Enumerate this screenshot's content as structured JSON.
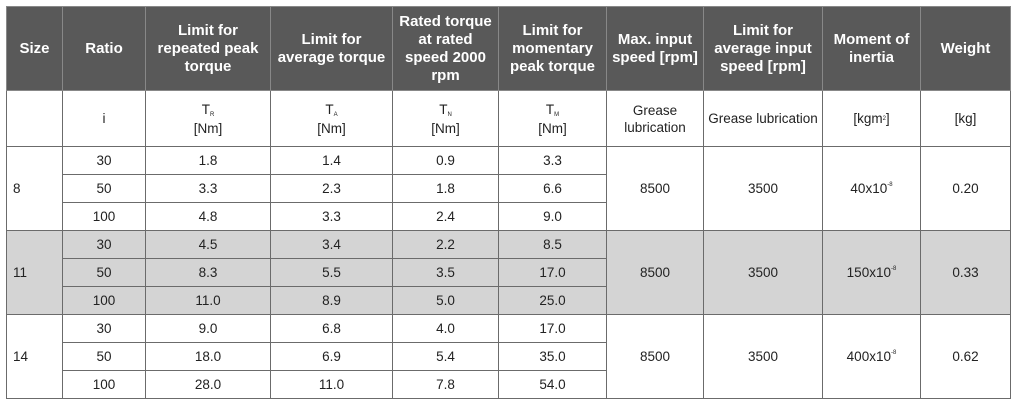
{
  "headers": [
    "Size",
    "Ratio",
    "Limit for repeated peak torque",
    "Limit for average torque",
    "Rated torque at rated speed 2000 rpm",
    "Limit for momentary peak torque",
    "Max. input speed [rpm]",
    "Limit for average input speed [rpm]",
    "Moment of inertia",
    "Weight"
  ],
  "units": {
    "ratio": "i",
    "repeated_peak": {
      "sym": "T",
      "sub": "R",
      "unit": "[Nm]"
    },
    "average": {
      "sym": "T",
      "sub": "A",
      "unit": "[Nm]"
    },
    "rated": {
      "sym": "T",
      "sub": "N",
      "unit": "[Nm]"
    },
    "momentary": {
      "sym": "T",
      "sub": "M",
      "unit": "[Nm]"
    },
    "max_speed": "Grease lubrication",
    "avg_speed": "Grease lubrication",
    "inertia": {
      "unit": "[kgm",
      "sup": "2",
      "close": "]"
    },
    "weight": "[kg]"
  },
  "groups": [
    {
      "size": "8",
      "max_speed": "8500",
      "avg_speed": "3500",
      "inertia": {
        "base": "40x10",
        "exp": "-8"
      },
      "weight": "0.20",
      "rows": [
        {
          "ratio": "30",
          "tr": "1.8",
          "ta": "1.4",
          "tn": "0.9",
          "tm": "3.3"
        },
        {
          "ratio": "50",
          "tr": "3.3",
          "ta": "2.3",
          "tn": "1.8",
          "tm": "6.6"
        },
        {
          "ratio": "100",
          "tr": "4.8",
          "ta": "3.3",
          "tn": "2.4",
          "tm": "9.0"
        }
      ]
    },
    {
      "size": "11",
      "max_speed": "8500",
      "avg_speed": "3500",
      "inertia": {
        "base": "150x10",
        "exp": "-8"
      },
      "weight": "0.33",
      "rows": [
        {
          "ratio": "30",
          "tr": "4.5",
          "ta": "3.4",
          "tn": "2.2",
          "tm": "8.5"
        },
        {
          "ratio": "50",
          "tr": "8.3",
          "ta": "5.5",
          "tn": "3.5",
          "tm": "17.0"
        },
        {
          "ratio": "100",
          "tr": "11.0",
          "ta": "8.9",
          "tn": "5.0",
          "tm": "25.0"
        }
      ]
    },
    {
      "size": "14",
      "max_speed": "8500",
      "avg_speed": "3500",
      "inertia": {
        "base": "400x10",
        "exp": "-8"
      },
      "weight": "0.62",
      "rows": [
        {
          "ratio": "30",
          "tr": "9.0",
          "ta": "6.8",
          "tn": "4.0",
          "tm": "17.0"
        },
        {
          "ratio": "50",
          "tr": "18.0",
          "ta": "6.9",
          "tn": "5.4",
          "tm": "35.0"
        },
        {
          "ratio": "100",
          "tr": "28.0",
          "ta": "11.0",
          "tn": "7.8",
          "tm": "54.0"
        }
      ]
    }
  ],
  "colors": {
    "header_bg": "#595959",
    "header_text": "#ffffff",
    "shaded_row": "#d4d4d4",
    "border": "#6b6b6b"
  }
}
